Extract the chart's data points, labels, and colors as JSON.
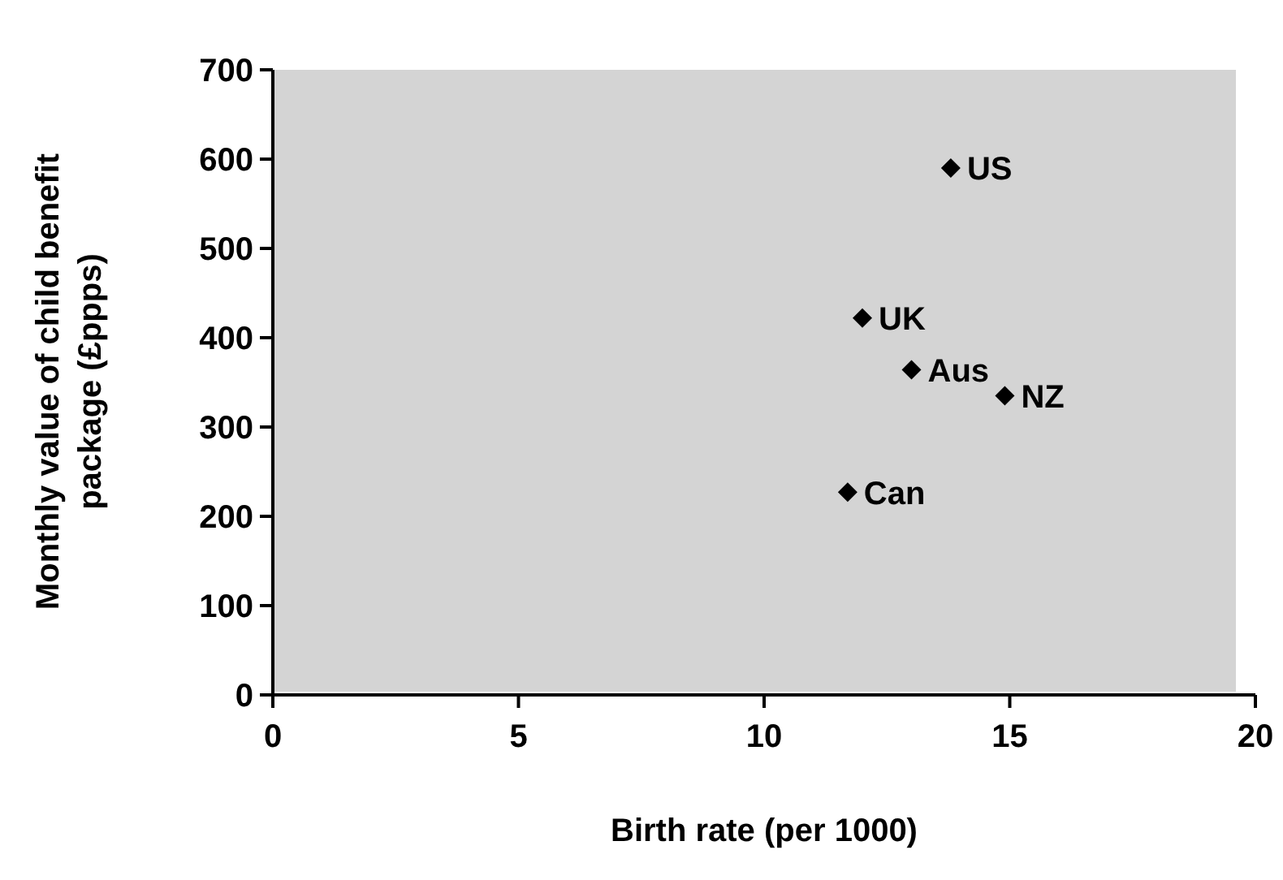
{
  "chart_data": {
    "type": "scatter",
    "xlabel": "Birth rate (per 1000)",
    "ylabel": "Monthly value of child benefit package (£ppps)",
    "x": [
      13.8,
      12.0,
      13.0,
      14.9,
      11.7
    ],
    "values": [
      590,
      422,
      364,
      335,
      227
    ],
    "color": "#000000",
    "marker": "diamond",
    "grid": false,
    "legend": false,
    "xlim": [
      0,
      20
    ],
    "xticks": [
      0,
      5,
      10,
      15,
      20
    ],
    "ylim": [
      0,
      700
    ],
    "yticks": [
      0,
      100,
      200,
      300,
      400,
      500,
      600,
      700
    ],
    "annotations": [
      {
        "text": "US",
        "x": 13.8,
        "y": 590
      },
      {
        "text": "UK",
        "x": 12.0,
        "y": 422
      },
      {
        "text": "Aus",
        "x": 13.0,
        "y": 364
      },
      {
        "text": "NZ",
        "x": 14.9,
        "y": 335
      },
      {
        "text": "Can",
        "x": 11.7,
        "y": 227
      }
    ]
  }
}
